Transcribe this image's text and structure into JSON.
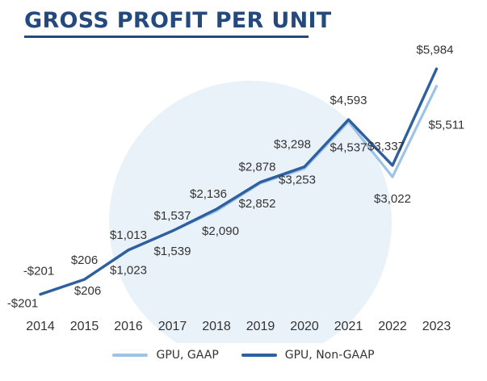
{
  "title": "GROSS PROFIT PER UNIT",
  "colors": {
    "gaap": "#9dc3e6",
    "nongaap": "#2e5f9e",
    "circle": "#e9f2f9",
    "title": "#23497d"
  },
  "chart_data": {
    "type": "line",
    "title": "GROSS PROFIT PER UNIT",
    "x": [
      "2014",
      "2015",
      "2016",
      "2017",
      "2018",
      "2019",
      "2020",
      "2021",
      "2022",
      "2023"
    ],
    "series": [
      {
        "name": "GPU, GAAP",
        "values": [
          -201,
          206,
          1023,
          1539,
          2090,
          2852,
          3253,
          4537,
          3022,
          5511
        ],
        "labels": [
          "-$201",
          "$206",
          "$1,023",
          "$1,539",
          "$2,090",
          "$2,852",
          "$3,253",
          "$4,537",
          "$3,022",
          "$5,511"
        ]
      },
      {
        "name": "GPU, Non-GAAP",
        "values": [
          -201,
          206,
          1013,
          1537,
          2136,
          2878,
          3298,
          4593,
          3337,
          5984
        ],
        "labels": [
          "-$201",
          "$206",
          "$1,013",
          "$1,537",
          "$2,136",
          "$2,878",
          "$3,298",
          "$4,593",
          "$3,337",
          "$5,984"
        ]
      }
    ],
    "legend_position": "bottom",
    "grid": false
  }
}
